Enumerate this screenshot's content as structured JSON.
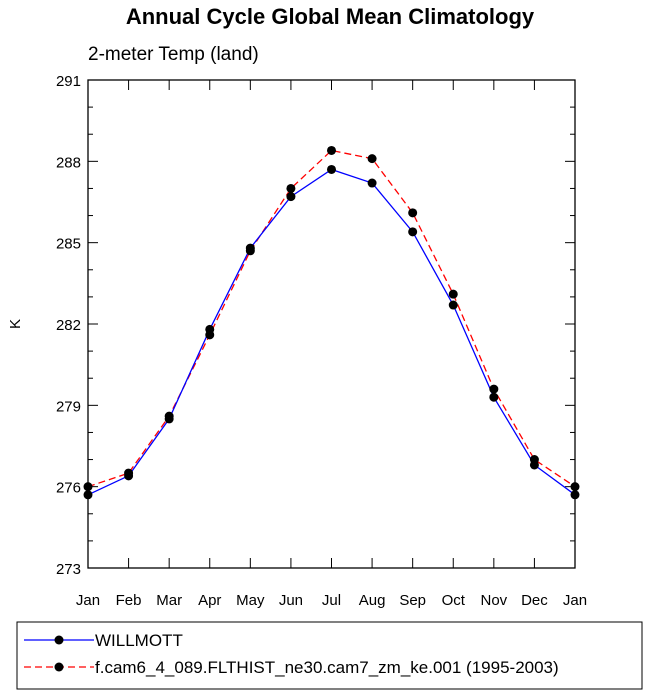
{
  "chart_data": {
    "type": "line",
    "title": "Annual Cycle Global Mean Climatology",
    "subtitle": "2-meter Temp (land)",
    "xlabel": "",
    "ylabel": "K",
    "categories": [
      "Jan",
      "Feb",
      "Mar",
      "Apr",
      "May",
      "Jun",
      "Jul",
      "Aug",
      "Sep",
      "Oct",
      "Nov",
      "Dec",
      "Jan"
    ],
    "ylim": [
      273,
      291
    ],
    "yticks": [
      273,
      276,
      279,
      282,
      285,
      288,
      291
    ],
    "ytick_labels": [
      "273",
      "276",
      "279",
      "282",
      "285",
      "288",
      "291"
    ],
    "legend_position": "bottom",
    "grid": false,
    "series": [
      {
        "name": "WILLMOTT",
        "color": "#0000ff",
        "dash": "solid",
        "marker": "circle",
        "values": [
          275.7,
          276.4,
          278.5,
          281.8,
          284.8,
          286.7,
          287.7,
          287.2,
          285.4,
          282.7,
          279.3,
          276.8,
          275.7
        ]
      },
      {
        "name": "f.cam6_4_089.FLTHIST_ne30.cam7_zm_ke.001 (1995-2003)",
        "color": "#ff0000",
        "dash": "dashed",
        "marker": "circle",
        "values": [
          276.0,
          276.5,
          278.6,
          281.6,
          284.7,
          287.0,
          288.4,
          288.1,
          286.1,
          283.1,
          279.6,
          277.0,
          276.0
        ]
      }
    ]
  }
}
